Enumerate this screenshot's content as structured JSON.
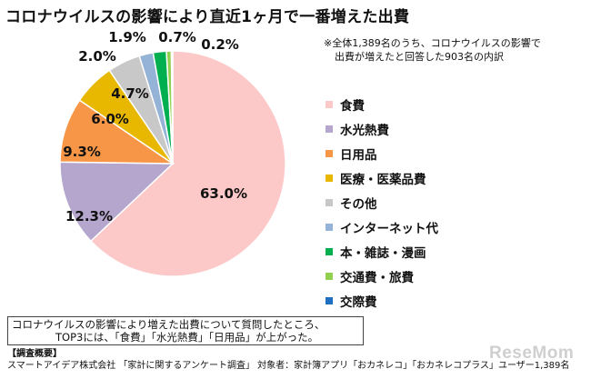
{
  "header": {
    "title": "コロナウイルスの影響により直近1ヶ月で一番増えた出費"
  },
  "note": {
    "line1": "※全体1,389名のうち、コロナウイルスの影響で",
    "line2": "出費が増えたと回答した903名の内訳"
  },
  "chart_data": {
    "type": "pie",
    "title": "コロナウイルスの影響により直近1ヶ月で一番増えた出費",
    "unit": "%",
    "start": "top, clockwise",
    "legend_position": "right",
    "slices": [
      {
        "label": "食費",
        "value": 63.0,
        "display": "63.0%",
        "color": "#fcc8c8"
      },
      {
        "label": "水光熱費",
        "value": 12.3,
        "display": "12.3%",
        "color": "#b4a6cc"
      },
      {
        "label": "日用品",
        "value": 9.3,
        "display": "9.3%",
        "color": "#f79646"
      },
      {
        "label": "医療・医薬品費",
        "value": 6.0,
        "display": "6.0%",
        "color": "#e8b800"
      },
      {
        "label": "その他",
        "value": 4.7,
        "display": "4.7%",
        "color": "#c8c8c8"
      },
      {
        "label": "インターネット代",
        "value": 2.0,
        "display": "2.0%",
        "color": "#95b3d7"
      },
      {
        "label": "本・雑誌・漫画",
        "value": 1.9,
        "display": "1.9%",
        "color": "#00b050"
      },
      {
        "label": "交通費・旅費",
        "value": 0.7,
        "display": "0.7%",
        "color": "#92d050"
      },
      {
        "label": "交際費",
        "value": 0.2,
        "display": "0.2%",
        "color": "#1f6fc0"
      }
    ]
  },
  "summary": {
    "line1": "コロナウイルスの影響により増えた出費について質問したところ、",
    "line2": "TOP3には、「食費」「水光熱費」「日用品」が上がった。"
  },
  "survey": {
    "heading": "【調査概要】",
    "detail": "スマートアイデア株式会社 「家計に関するアンケート調査」 対象者：家計簿アプリ「おカネレコ」「おカネレコプラス」ユーザー1,389名"
  },
  "brand": {
    "logo_text": "ReseMom"
  }
}
